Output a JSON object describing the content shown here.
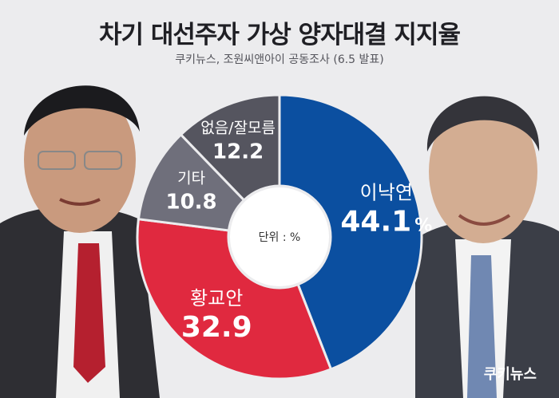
{
  "title": "차기 대선주자 가상 양자대결 지지율",
  "subtitle": "쿠키뉴스, 조원씨앤아이 공동조사 (6.5 발표)",
  "brand": "쿠키뉴스",
  "chart_data": {
    "type": "pie",
    "variant": "donut",
    "unit_label": "단위 : %",
    "unit_suffix": "%",
    "start_angle_deg": 0,
    "direction": "clockwise",
    "slices": [
      {
        "label": "이낙연",
        "value": 44.1,
        "color": "#0b4fa0",
        "show_suffix": true
      },
      {
        "label": "황교안",
        "value": 32.9,
        "color": "#e0293f",
        "show_suffix": false
      },
      {
        "label": "기타",
        "value": 10.8,
        "color": "#6f6f7b",
        "show_suffix": false
      },
      {
        "label": "없음/잘모름",
        "value": 12.2,
        "color": "#55555f",
        "show_suffix": false
      }
    ]
  }
}
